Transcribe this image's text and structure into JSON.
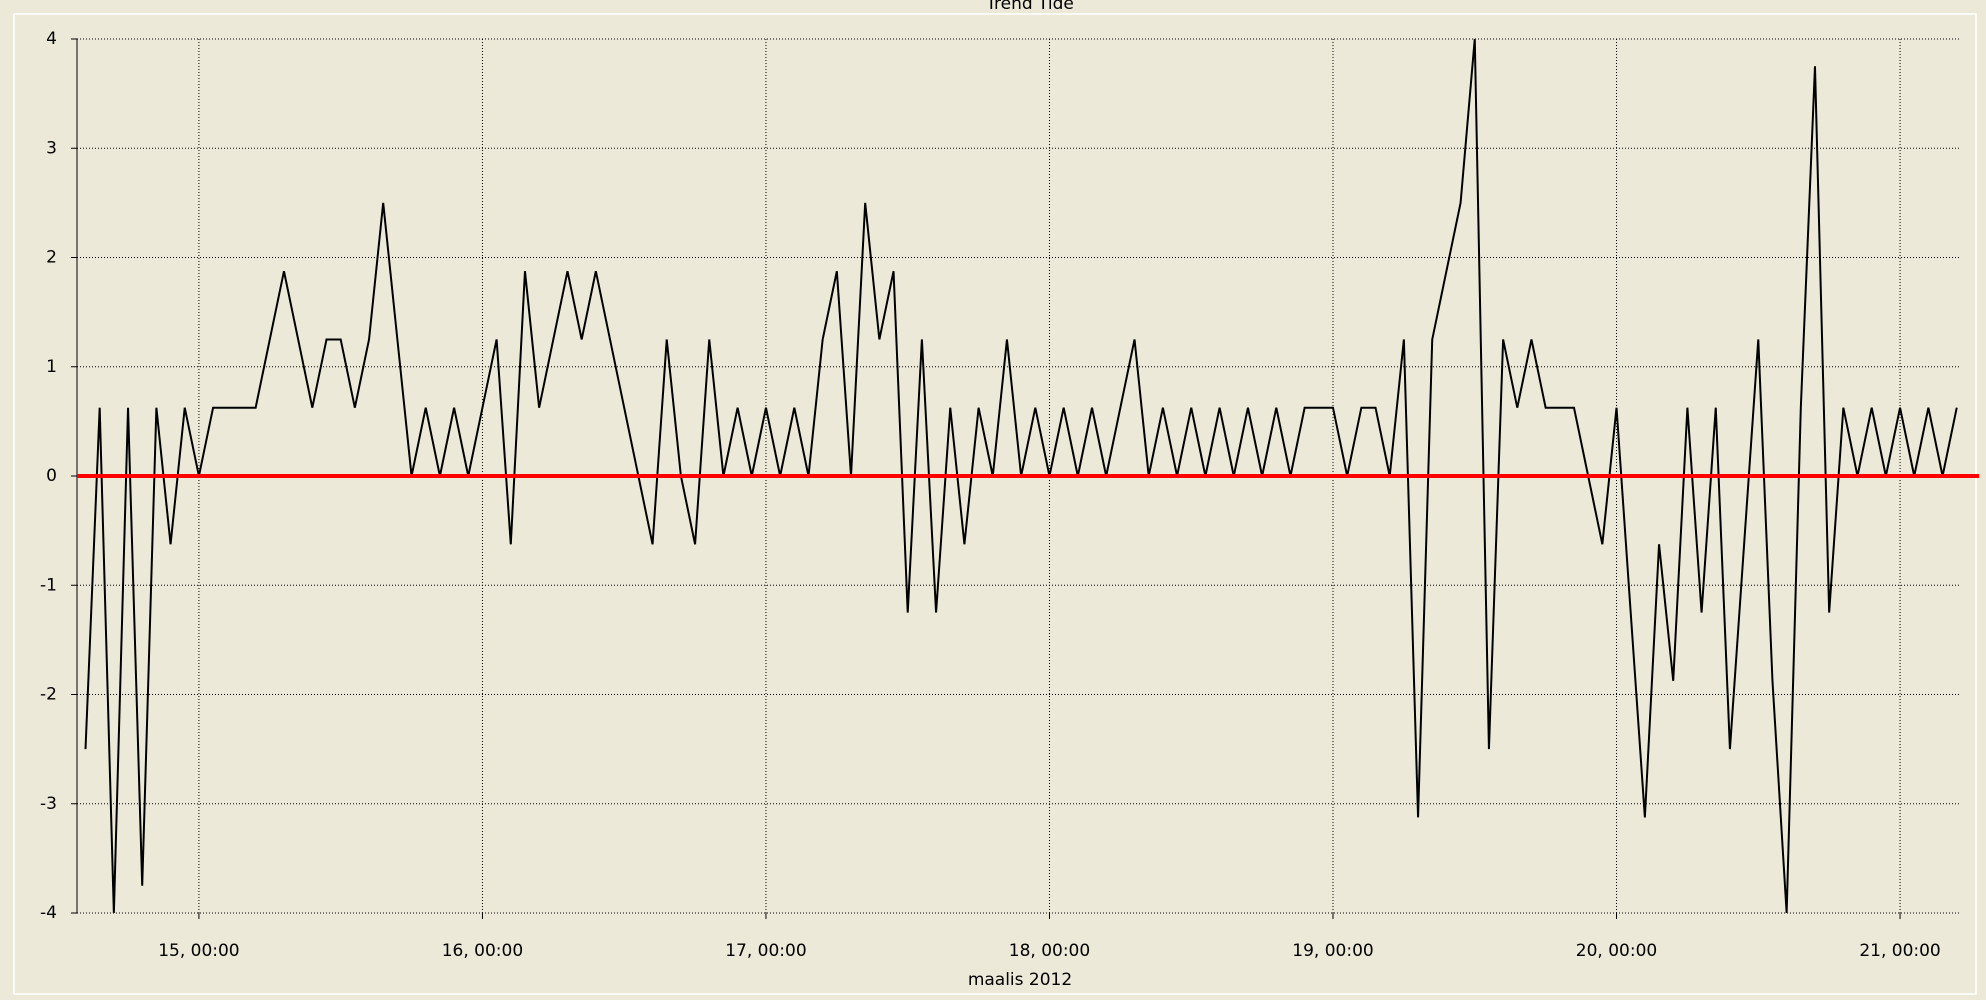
{
  "chart_data": {
    "type": "line",
    "title": "Trend Tide",
    "x_label": "maalis 2012",
    "x": [
      14.6,
      14.65,
      14.7,
      14.75,
      14.8,
      14.85,
      14.9,
      14.95,
      15.0,
      15.05,
      15.1,
      15.15,
      15.2,
      15.25,
      15.3,
      15.35,
      15.4,
      15.45,
      15.5,
      15.55,
      15.6,
      15.65,
      15.7,
      15.75,
      15.8,
      15.85,
      15.9,
      15.95,
      16.0,
      16.05,
      16.1,
      16.15,
      16.2,
      16.25,
      16.3,
      16.35,
      16.4,
      16.45,
      16.5,
      16.55,
      16.6,
      16.65,
      16.7,
      16.75,
      16.8,
      16.85,
      16.9,
      16.95,
      17.0,
      17.05,
      17.1,
      17.15,
      17.2,
      17.25,
      17.3,
      17.35,
      17.4,
      17.45,
      17.5,
      17.55,
      17.6,
      17.65,
      17.7,
      17.75,
      17.8,
      17.85,
      17.9,
      17.95,
      18.0,
      18.05,
      18.1,
      18.15,
      18.2,
      18.25,
      18.3,
      18.35,
      18.4,
      18.45,
      18.5,
      18.55,
      18.6,
      18.65,
      18.7,
      18.75,
      18.8,
      18.85,
      18.9,
      18.95,
      19.0,
      19.05,
      19.1,
      19.15,
      19.2,
      19.25,
      19.3,
      19.35,
      19.4,
      19.45,
      19.5,
      19.55,
      19.6,
      19.65,
      19.7,
      19.75,
      19.8,
      19.85,
      19.9,
      19.95,
      20.0,
      20.05,
      20.1,
      20.15,
      20.2,
      20.25,
      20.3,
      20.35,
      20.4,
      20.45,
      20.5,
      20.55,
      20.6,
      20.65,
      20.7,
      20.75,
      20.8,
      20.85,
      20.9,
      20.95,
      21.0,
      21.05,
      21.1,
      21.15,
      21.2
    ],
    "series": [
      {
        "color": "#000000",
        "values": [
          -2.5,
          0.625,
          -4,
          0.625,
          -3.75,
          0.625,
          -0.625,
          0.625,
          0,
          0.625,
          0.625,
          0.625,
          0.625,
          1.25,
          1.875,
          1.25,
          0.625,
          1.25,
          1.25,
          0.625,
          1.25,
          2.5,
          1.25,
          0,
          0.625,
          0,
          0.625,
          0,
          0.625,
          1.25,
          -0.625,
          1.875,
          0.625,
          1.25,
          1.875,
          1.25,
          1.875,
          1.25,
          0.625,
          0,
          -0.625,
          1.25,
          0,
          -0.625,
          1.25,
          0,
          0.625,
          0,
          0.625,
          0,
          0.625,
          0,
          1.25,
          1.875,
          0,
          2.5,
          1.25,
          1.875,
          -1.25,
          1.25,
          -1.25,
          0.625,
          -0.625,
          0.625,
          0,
          1.25,
          0,
          0.625,
          0,
          0.625,
          0,
          0.625,
          0,
          0.625,
          1.25,
          0,
          0.625,
          0,
          0.625,
          0,
          0.625,
          0,
          0.625,
          0,
          0.625,
          0,
          0.625,
          0.625,
          0.625,
          0,
          0.625,
          0.625,
          0,
          1.25,
          -3.125,
          1.25,
          1.875,
          2.5,
          4,
          -2.5,
          1.25,
          0.625,
          1.25,
          0.625,
          0.625,
          0.625,
          0,
          -0.625,
          0.625,
          -1.25,
          -3.125,
          -0.625,
          -1.875,
          0.625,
          -1.25,
          0.625,
          -2.5,
          -0.625,
          1.25,
          -1.875,
          -4,
          0.625,
          3.75,
          -1.25,
          0.625,
          0,
          0.625,
          0,
          0.625,
          0,
          0.625,
          0,
          0.625
        ]
      }
    ],
    "hlines": [
      {
        "value": 0,
        "color": "#ff0000"
      }
    ],
    "xlim": [
      14.57,
      21.215
    ],
    "ylim": [
      -4,
      4
    ],
    "xticks": [
      {
        "value": 15,
        "label": "15, 00:00"
      },
      {
        "value": 16,
        "label": "16, 00:00"
      },
      {
        "value": 17,
        "label": "17, 00:00"
      },
      {
        "value": 18,
        "label": "18, 00:00"
      },
      {
        "value": 19,
        "label": "19, 00:00"
      },
      {
        "value": 20,
        "label": "20, 00:00"
      },
      {
        "value": 21,
        "label": "21, 00:00"
      }
    ],
    "yticks": [
      -4,
      -3,
      -2,
      -1,
      0,
      1,
      2,
      3,
      4
    ],
    "grid": true
  }
}
